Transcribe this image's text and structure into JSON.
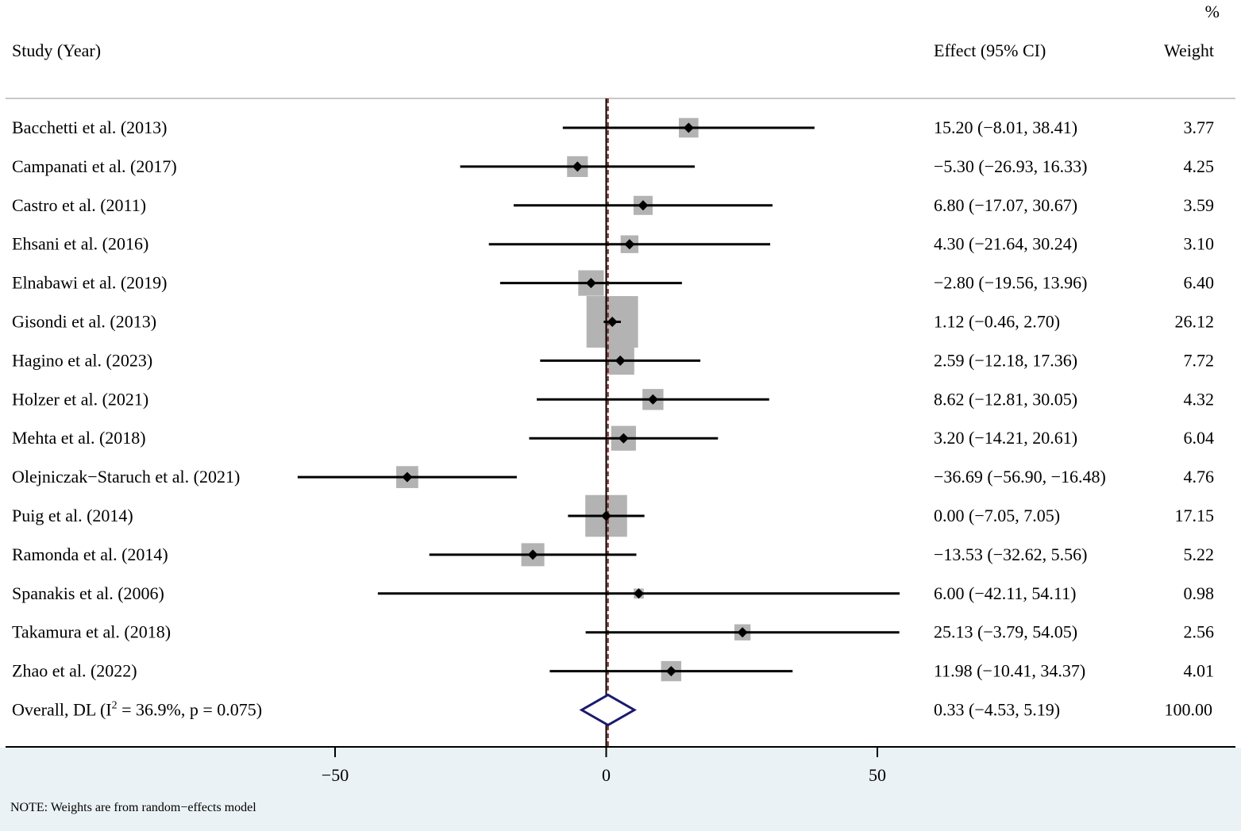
{
  "chart_data": {
    "type": "forest",
    "headers": {
      "study": "Study (Year)",
      "effect": "Effect (95% CI)",
      "weight_pct": "%",
      "weight": "Weight"
    },
    "xaxis": {
      "ticks": [
        -50,
        0,
        50
      ],
      "tick_labels": [
        "−50",
        "0",
        "50"
      ],
      "range": [
        -110,
        116
      ]
    },
    "null_line": 0,
    "overall_line": 0.33,
    "studies": [
      {
        "label": "Bacchetti et al. (2013)",
        "es": 15.2,
        "lci": -8.01,
        "uci": 38.41,
        "effect_text": "15.20 (−8.01, 38.41)",
        "weight": 3.77,
        "weight_text": "3.77"
      },
      {
        "label": "Campanati et al. (2017)",
        "es": -5.3,
        "lci": -26.93,
        "uci": 16.33,
        "effect_text": "−5.30 (−26.93, 16.33)",
        "weight": 4.25,
        "weight_text": "4.25"
      },
      {
        "label": "Castro et al. (2011)",
        "es": 6.8,
        "lci": -17.07,
        "uci": 30.67,
        "effect_text": "6.80 (−17.07, 30.67)",
        "weight": 3.59,
        "weight_text": "3.59"
      },
      {
        "label": "Ehsani et al. (2016)",
        "es": 4.3,
        "lci": -21.64,
        "uci": 30.24,
        "effect_text": "4.30 (−21.64, 30.24)",
        "weight": 3.1,
        "weight_text": "3.10"
      },
      {
        "label": "Elnabawi et al. (2019)",
        "es": -2.8,
        "lci": -19.56,
        "uci": 13.96,
        "effect_text": "−2.80 (−19.56, 13.96)",
        "weight": 6.4,
        "weight_text": "6.40"
      },
      {
        "label": "Gisondi et al. (2013)",
        "es": 1.12,
        "lci": -0.46,
        "uci": 2.7,
        "effect_text": "1.12 (−0.46, 2.70)",
        "weight": 26.12,
        "weight_text": "26.12"
      },
      {
        "label": "Hagino et al.  (2023)",
        "es": 2.59,
        "lci": -12.18,
        "uci": 17.36,
        "effect_text": "2.59 (−12.18, 17.36)",
        "weight": 7.72,
        "weight_text": "7.72"
      },
      {
        "label": "Holzer et al. (2021)",
        "es": 8.62,
        "lci": -12.81,
        "uci": 30.05,
        "effect_text": "8.62 (−12.81, 30.05)",
        "weight": 4.32,
        "weight_text": "4.32"
      },
      {
        "label": "Mehta et al. (2018)",
        "es": 3.2,
        "lci": -14.21,
        "uci": 20.61,
        "effect_text": "3.20 (−14.21, 20.61)",
        "weight": 6.04,
        "weight_text": "6.04"
      },
      {
        "label": "Olejniczak−Staruch et al. (2021)",
        "es": -36.69,
        "lci": -56.9,
        "uci": -16.48,
        "effect_text": "−36.69 (−56.90, −16.48)",
        "weight": 4.76,
        "weight_text": "4.76"
      },
      {
        "label": "Puig et al. (2014)",
        "es": 0.0,
        "lci": -7.05,
        "uci": 7.05,
        "effect_text": "0.00 (−7.05, 7.05)",
        "weight": 17.15,
        "weight_text": "17.15"
      },
      {
        "label": "Ramonda et al. (2014)",
        "es": -13.53,
        "lci": -32.62,
        "uci": 5.56,
        "effect_text": "−13.53 (−32.62, 5.56)",
        "weight": 5.22,
        "weight_text": "5.22"
      },
      {
        "label": "Spanakis et al. (2006)",
        "es": 6.0,
        "lci": -42.11,
        "uci": 54.11,
        "effect_text": "6.00 (−42.11, 54.11)",
        "weight": 0.98,
        "weight_text": "0.98"
      },
      {
        "label": "Takamura et al. (2018)",
        "es": 25.13,
        "lci": -3.79,
        "uci": 54.05,
        "effect_text": "25.13 (−3.79, 54.05)",
        "weight": 2.56,
        "weight_text": "2.56"
      },
      {
        "label": "Zhao et al. (2022)",
        "es": 11.98,
        "lci": -10.41,
        "uci": 34.37,
        "effect_text": "11.98 (−10.41, 34.37)",
        "weight": 4.01,
        "weight_text": "4.01"
      }
    ],
    "overall": {
      "label_prefix": "Overall, DL (I",
      "label_sup": "2",
      "label_suffix": " = 36.9%, p = 0.075)",
      "es": 0.33,
      "lci": -4.53,
      "uci": 5.19,
      "effect_text": "0.33 (−4.53, 5.19)",
      "weight": 100.0,
      "weight_text": "100.00"
    },
    "note": "NOTE: Weights are from random−effects model",
    "colors": {
      "weight_box": "#b3b3b3",
      "diamond": "#1a1a6e",
      "null_line": "#000000",
      "overall_line": "#8b2323",
      "note_background": "#ebf2f5",
      "header_rule": "#c8c8c8"
    }
  }
}
